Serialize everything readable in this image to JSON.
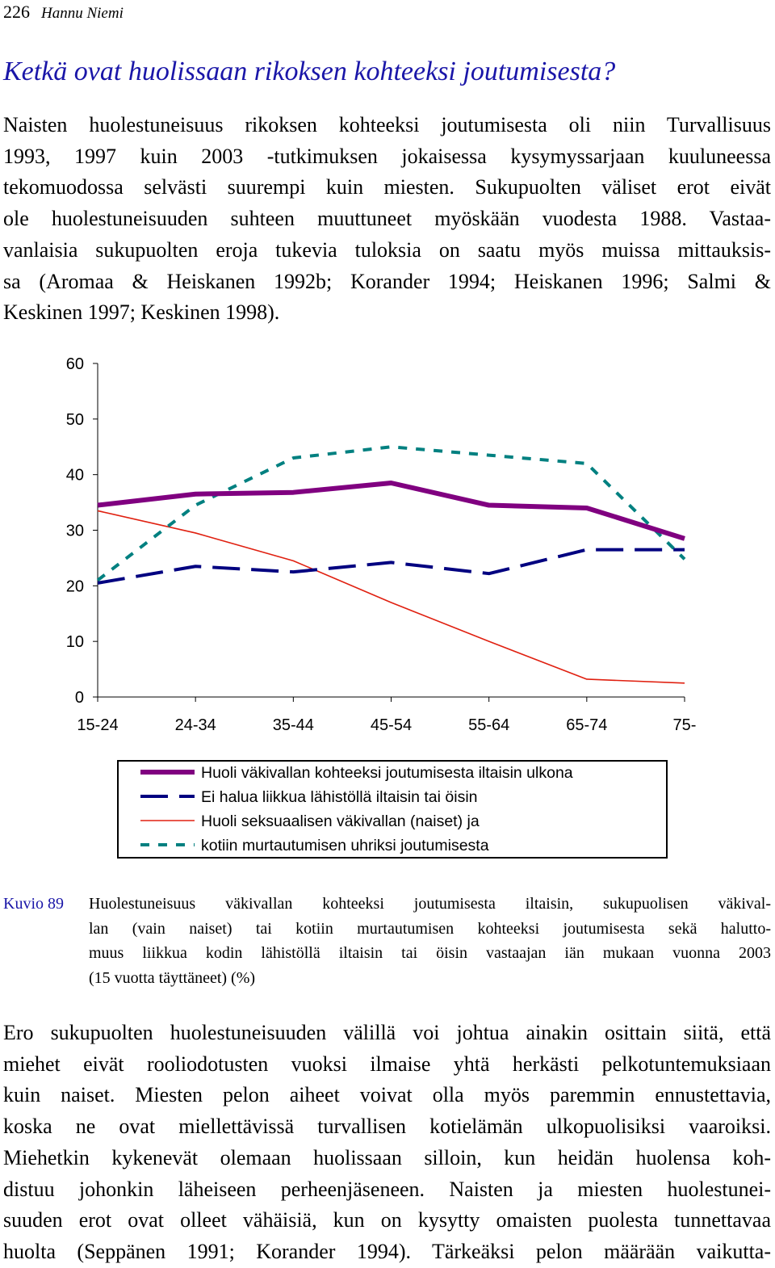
{
  "header": {
    "page_number": "226",
    "author": "Hannu Niemi"
  },
  "section_title": "Ketkä ovat huolissaan rikoksen kohteeksi joutumisesta?",
  "paragraph1_lines": [
    "Naisten huolestuneisuus rikoksen kohteeksi joutumisesta oli niin Turvallisuus",
    "1993, 1997 kuin 2003 -tutkimuksen jokaisessa kysymyssarjaan kuuluneessa",
    "tekomuodossa selvästi suurempi kuin miesten. Sukupuolten väliset erot eivät",
    "ole huolestuneisuuden suhteen muuttuneet myöskään vuodesta 1988. Vastaa-",
    "vanlaisia sukupuolten eroja tukevia tuloksia on saatu myös muissa mittauksis-",
    "sa (Aromaa & Heiskanen 1992b; Korander 1994; Heiskanen 1996; Salmi &",
    "Keskinen 1997; Keskinen 1998)."
  ],
  "chart_data": {
    "type": "line",
    "categories": [
      "15-24",
      "24-34",
      "35-44",
      "45-54",
      "55-64",
      "65-74",
      "75-"
    ],
    "ylim": [
      0,
      60
    ],
    "yticks": [
      "0",
      "10",
      "20",
      "30",
      "40",
      "50",
      "60"
    ],
    "series": [
      {
        "name": "Huoli väkivallan kohteeksi joutumisesta iltaisin ulkona",
        "values": [
          34.5,
          36.5,
          36.8,
          38.5,
          34.5,
          34,
          28.5
        ],
        "color": "#800080",
        "style": "solid-thick"
      },
      {
        "name": "Ei halua liikkua lähistöllä iltaisin tai öisin",
        "values": [
          20.5,
          23.5,
          22.5,
          24.2,
          22.2,
          26.5,
          26.5
        ],
        "color": "#000080",
        "style": "long-dash"
      },
      {
        "name": "Huoli seksuaalisen väkivallan (naiset) ja",
        "values": [
          33.5,
          29.5,
          24.5,
          17,
          10,
          3.2,
          2.5
        ],
        "color": "#e02010",
        "style": "solid-thin"
      },
      {
        "name": "kotiin murtautumisen uhriksi joutumisesta",
        "values": [
          21,
          34.5,
          43,
          45,
          43.5,
          42,
          24.8
        ],
        "color": "#008080",
        "style": "short-dash"
      }
    ],
    "grid": false,
    "legend": "bottom"
  },
  "caption": {
    "label": "Kuvio 89",
    "lines": [
      "Huolestuneisuus väkivallan kohteeksi joutumisesta iltaisin, sukupuolisen väkival-",
      "lan (vain naiset) tai kotiin murtautumisen kohteeksi joutumisesta sekä halutto-",
      "muus liikkua kodin lähistöllä iltaisin tai öisin vastaajan iän mukaan vuonna 2003",
      "(15 vuotta täyttäneet) (%)"
    ]
  },
  "paragraph2_lines": [
    "Ero sukupuolten huolestuneisuuden välillä voi johtua ainakin osittain siitä, että",
    "miehet eivät rooliodotusten vuoksi ilmaise yhtä herkästi pelkotuntemuksiaan",
    "kuin naiset. Miesten pelon aiheet voivat olla myös paremmin ennustettavia,",
    "koska ne ovat miellettävissä turvallisen kotielämän ulkopuolisiksi vaaroiksi.",
    "Miehetkin kykenevät olemaan huolissaan silloin, kun heidän huolensa koh-",
    "distuu johonkin läheiseen perheenjäseneen. Naisten ja miesten huolestunei-",
    "suuden erot ovat olleet vähäisiä, kun on kysytty omaisten puolesta tunnettavaa",
    "huolta (Seppänen 1991; Korander 1994). Tärkeäksi pelon määrään vaikutta-"
  ]
}
